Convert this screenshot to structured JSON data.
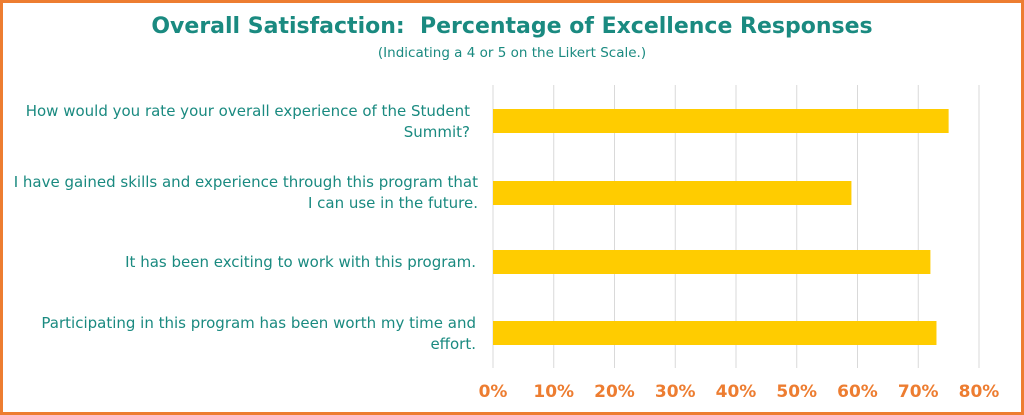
{
  "chart_data": {
    "type": "bar",
    "orientation": "horizontal",
    "title": "Overall Satisfaction:  Percentage of Excellence Responses",
    "subtitle": "(Indicating a 4 or 5 on the Likert Scale.)",
    "categories": [
      "How would you rate your overall experience of the Student Summit?",
      "I have gained skills and experience through this program that I can use in the future.",
      "It has been exciting to work with this program.",
      "Participating in this program has been worth my time and effort."
    ],
    "values": [
      75,
      59,
      72,
      73
    ],
    "xlim": [
      0,
      80
    ],
    "x_ticks": [
      "0%",
      "10%",
      "20%",
      "30%",
      "40%",
      "50%",
      "60%",
      "70%",
      "80%"
    ],
    "grid": "vertical",
    "legend": "none",
    "colors": {
      "bar": "#ffcc00",
      "title": "#1a8a80",
      "tick_labels": "#ed7d31",
      "border": "#ed7d31",
      "grid": "#d9d9d9"
    }
  }
}
